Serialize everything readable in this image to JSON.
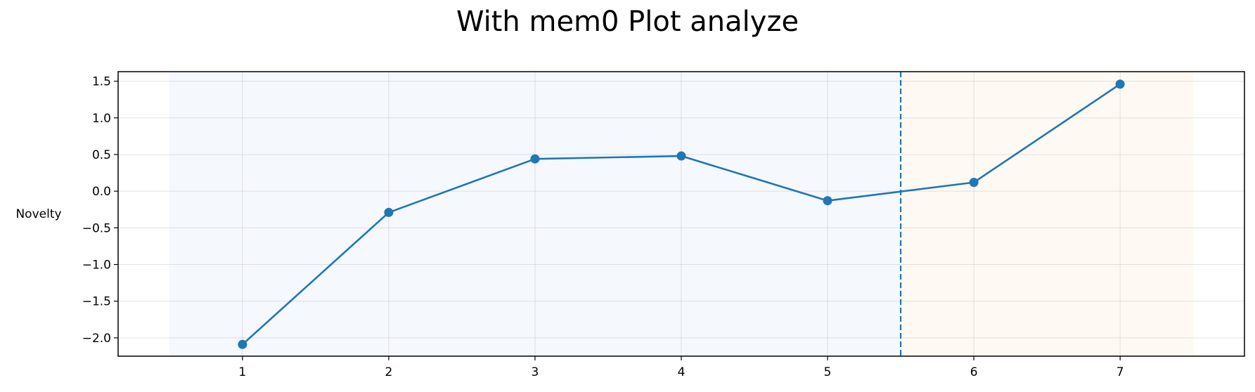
{
  "chart_data": {
    "type": "line",
    "title": "With mem0 Plot analyze",
    "xlabel": "",
    "ylabel": "Novelty",
    "x": [
      1,
      2,
      3,
      4,
      5,
      6,
      7
    ],
    "series": [
      {
        "values": [
          -2.09,
          -0.29,
          0.44,
          0.48,
          -0.13,
          0.12,
          1.46
        ]
      }
    ],
    "xlim": [
      0.15,
      7.85
    ],
    "ylim": [
      -2.25,
      1.63
    ],
    "xticks": [
      "1",
      "2",
      "3",
      "4",
      "5",
      "6",
      "7"
    ],
    "yticks": [
      "1.5",
      "1.0",
      "0.5",
      "0.0",
      "−0.5",
      "−1.0",
      "−1.5",
      "−2.0"
    ],
    "ytick_values": [
      1.5,
      1.0,
      0.5,
      0.0,
      -0.5,
      -1.0,
      -1.5,
      -2.0
    ],
    "regions": [
      {
        "x_from": 0.5,
        "x_to": 5.5,
        "color": "#f5f8fd"
      },
      {
        "x_from": 5.5,
        "x_to": 7.5,
        "color": "#fef9f3"
      }
    ],
    "divider_x": 5.5,
    "grid": true,
    "line_color": "#1f77b4"
  }
}
